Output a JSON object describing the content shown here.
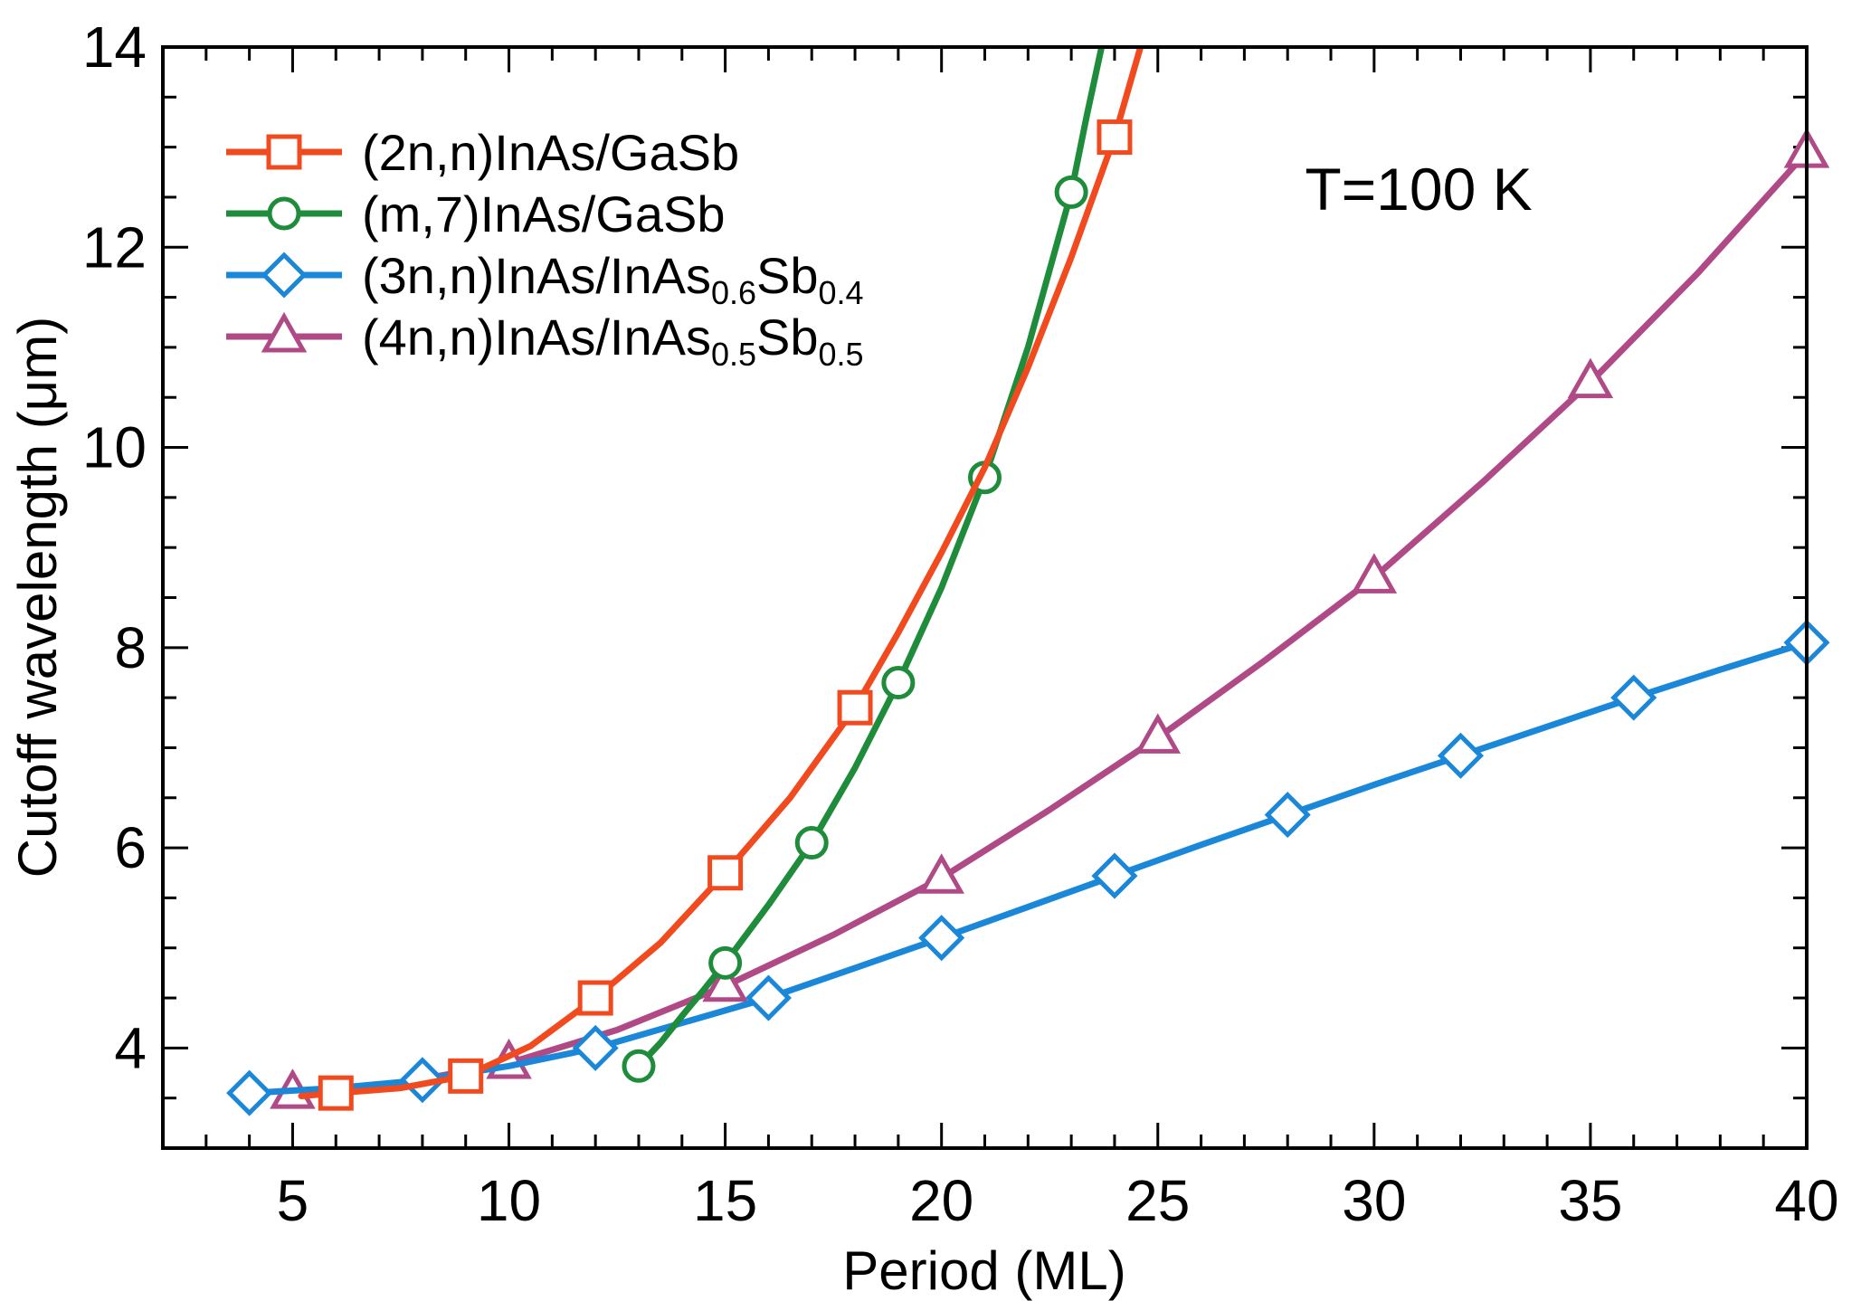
{
  "chart_data": {
    "type": "line",
    "title": "",
    "xlabel": "Period (ML)",
    "ylabel": "Cutoff wavelength (μm)",
    "xlim": [
      2,
      40
    ],
    "ylim": [
      3,
      14
    ],
    "xticks": [
      5,
      10,
      15,
      20,
      25,
      30,
      35,
      40
    ],
    "yticks": [
      4,
      6,
      8,
      10,
      12,
      14
    ],
    "x_minor_step": 1,
    "y_minor_step": 0.5,
    "grid": false,
    "legend_position": "top-left",
    "annotation": "T=100 K",
    "series": [
      {
        "name": "(2n,n)InAs/GaSb",
        "legend_parts": [
          {
            "text": "(2n,n)InAs/GaSb",
            "sub": false
          }
        ],
        "color": "#f04a1e",
        "marker": "square",
        "x": [
          6,
          9,
          12,
          15,
          18,
          24
        ],
        "y": [
          3.55,
          3.72,
          4.5,
          5.75,
          7.4,
          13.1
        ],
        "curve": [
          [
            5.2,
            3.52
          ],
          [
            6,
            3.55
          ],
          [
            7.5,
            3.6
          ],
          [
            9,
            3.72
          ],
          [
            10.5,
            4.02
          ],
          [
            12,
            4.5
          ],
          [
            13.5,
            5.05
          ],
          [
            15,
            5.75
          ],
          [
            16.5,
            6.5
          ],
          [
            18,
            7.4
          ],
          [
            19,
            8.15
          ],
          [
            20,
            8.95
          ],
          [
            21,
            9.8
          ],
          [
            22,
            10.8
          ],
          [
            23,
            11.9
          ],
          [
            24,
            13.1
          ],
          [
            24.6,
            14.0
          ]
        ]
      },
      {
        "name": "(m,7)InAs/GaSb",
        "legend_parts": [
          {
            "text": "(m,7)InAs/GaSb",
            "sub": false
          }
        ],
        "color": "#1e8c3a",
        "marker": "circle",
        "x": [
          13,
          15,
          17,
          19,
          21,
          23
        ],
        "y": [
          3.82,
          4.85,
          6.05,
          7.65,
          9.7,
          12.55
        ],
        "curve": [
          [
            13,
            3.82
          ],
          [
            13.5,
            4.05
          ],
          [
            14,
            4.32
          ],
          [
            14.5,
            4.58
          ],
          [
            15,
            4.85
          ],
          [
            16,
            5.43
          ],
          [
            17,
            6.05
          ],
          [
            18,
            6.8
          ],
          [
            19,
            7.65
          ],
          [
            20,
            8.6
          ],
          [
            21,
            9.7
          ],
          [
            22,
            11.0
          ],
          [
            23,
            12.55
          ],
          [
            23.35,
            13.3
          ],
          [
            23.7,
            14.0
          ]
        ]
      },
      {
        "name": "(3n,n)InAs/InAs0.6Sb0.4",
        "legend_parts": [
          {
            "text": "(3n,n)InAs/InAs",
            "sub": false
          },
          {
            "text": "0.6",
            "sub": true
          },
          {
            "text": "Sb",
            "sub": false
          },
          {
            "text": "0.4",
            "sub": true
          }
        ],
        "color": "#1a87d8",
        "marker": "diamond",
        "x": [
          4,
          8,
          12,
          16,
          20,
          24,
          28,
          32,
          36,
          40
        ],
        "y": [
          3.55,
          3.68,
          4.0,
          4.5,
          5.1,
          5.72,
          6.33,
          6.92,
          7.5,
          8.05
        ],
        "curve": [
          [
            4,
            3.55
          ],
          [
            6,
            3.6
          ],
          [
            8,
            3.68
          ],
          [
            10,
            3.82
          ],
          [
            12,
            4.0
          ],
          [
            14,
            4.25
          ],
          [
            16,
            4.5
          ],
          [
            18,
            4.8
          ],
          [
            20,
            5.1
          ],
          [
            22,
            5.41
          ],
          [
            24,
            5.72
          ],
          [
            26,
            6.03
          ],
          [
            28,
            6.33
          ],
          [
            30,
            6.63
          ],
          [
            32,
            6.92
          ],
          [
            34,
            7.21
          ],
          [
            36,
            7.5
          ],
          [
            38,
            7.78
          ],
          [
            40,
            8.05
          ]
        ]
      },
      {
        "name": "(4n,n)InAs/InAs0.5Sb0.5",
        "legend_parts": [
          {
            "text": "(4n,n)InAs/InAs",
            "sub": false
          },
          {
            "text": "0.5",
            "sub": true
          },
          {
            "text": "Sb",
            "sub": false
          },
          {
            "text": "0.5",
            "sub": true
          }
        ],
        "color": "#b04a86",
        "marker": "triangle",
        "x": [
          5,
          10,
          15,
          20,
          25,
          30,
          35,
          40
        ],
        "y": [
          3.55,
          3.85,
          4.62,
          5.7,
          7.1,
          8.7,
          10.65,
          12.95
        ],
        "curve": [
          [
            5,
            3.55
          ],
          [
            7.5,
            3.65
          ],
          [
            10,
            3.85
          ],
          [
            12.5,
            4.18
          ],
          [
            15,
            4.62
          ],
          [
            17.5,
            5.13
          ],
          [
            20,
            5.7
          ],
          [
            22.5,
            6.38
          ],
          [
            25,
            7.1
          ],
          [
            27.5,
            7.88
          ],
          [
            30,
            8.7
          ],
          [
            32.5,
            9.65
          ],
          [
            35,
            10.65
          ],
          [
            37.5,
            11.75
          ],
          [
            40,
            12.95
          ]
        ]
      }
    ]
  }
}
